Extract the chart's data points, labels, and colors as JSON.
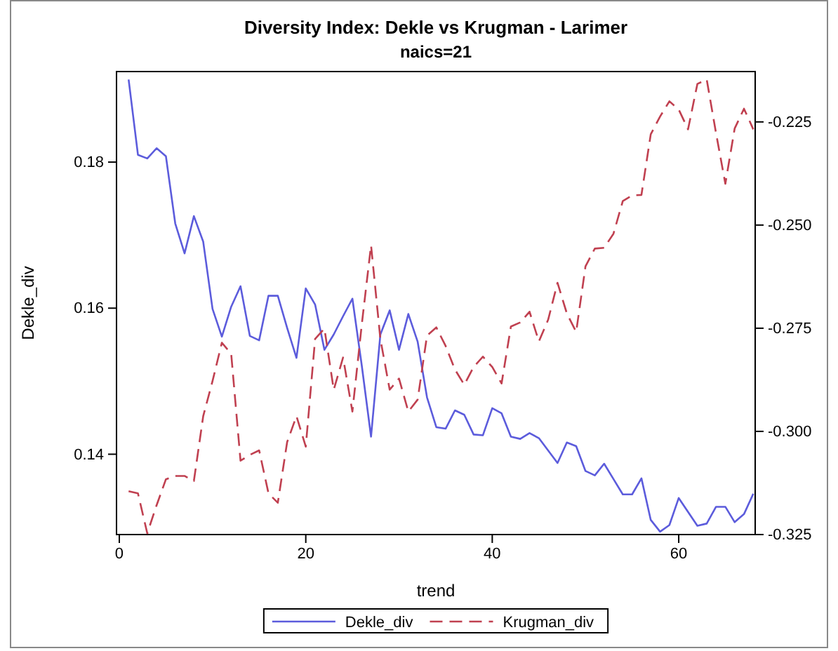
{
  "chart_data": {
    "type": "line",
    "title": "Diversity Index: Dekle vs Krugman - Larimer",
    "subtitle": "naics=21",
    "xlabel": "trend",
    "ylabel": "Dekle_div",
    "x": [
      1,
      2,
      3,
      4,
      5,
      6,
      7,
      8,
      9,
      10,
      11,
      12,
      13,
      14,
      15,
      16,
      17,
      18,
      19,
      20,
      21,
      22,
      23,
      24,
      25,
      26,
      27,
      28,
      29,
      30,
      31,
      32,
      33,
      34,
      35,
      36,
      37,
      38,
      39,
      40,
      41,
      42,
      43,
      44,
      45,
      46,
      47,
      48,
      49,
      50,
      51,
      52,
      53,
      54,
      55,
      56,
      57,
      58,
      59,
      60,
      61,
      62,
      63,
      64,
      65,
      66,
      67,
      68
    ],
    "xlim": [
      -0.3,
      68.2
    ],
    "xticks": [
      0,
      20,
      40,
      60
    ],
    "ylim": [
      0.129,
      0.1924
    ],
    "yticks": [
      {
        "value": 0.14,
        "label": "0.14"
      },
      {
        "value": 0.16,
        "label": "0.16"
      },
      {
        "value": 0.18,
        "label": "0.18"
      }
    ],
    "y2lim": [
      -0.325,
      -0.2128
    ],
    "y2ticks": [
      {
        "value": -0.325,
        "label": "-0.325"
      },
      {
        "value": -0.3,
        "label": "-0.300"
      },
      {
        "value": -0.275,
        "label": "-0.275"
      },
      {
        "value": -0.25,
        "label": "-0.250"
      },
      {
        "value": -0.225,
        "label": "-0.225"
      }
    ],
    "legend": "bottom",
    "grid": false,
    "series": [
      {
        "name": "Dekle_div",
        "color": "#5c5cdc",
        "line_style": "solid",
        "values": [
          0.1913,
          0.181,
          0.1805,
          0.1819,
          0.1808,
          0.1716,
          0.1675,
          0.1726,
          0.1691,
          0.1599,
          0.1561,
          0.1602,
          0.163,
          0.1562,
          0.1556,
          0.1617,
          0.1617,
          0.1573,
          0.1532,
          0.1627,
          0.1605,
          0.1543,
          0.1564,
          0.1589,
          0.1613,
          0.1522,
          0.1424,
          0.1564,
          0.1597,
          0.1543,
          0.1592,
          0.1554,
          0.1478,
          0.1437,
          0.1435,
          0.146,
          0.1454,
          0.1427,
          0.1426,
          0.1463,
          0.1456,
          0.1424,
          0.1421,
          0.1429,
          0.1422,
          0.1405,
          0.1388,
          0.1416,
          0.1411,
          0.1377,
          0.1371,
          0.1387,
          0.1366,
          0.1345,
          0.1345,
          0.1367,
          0.131,
          0.1294,
          0.1303,
          0.134,
          0.1321,
          0.1302,
          0.1305,
          0.1328,
          0.1328,
          0.1307,
          0.1318,
          0.1346
        ]
      },
      {
        "name": "Krugman_div",
        "color": "#c04050",
        "line_style": "dashed",
        "axis": "y2",
        "values": [
          -0.3145,
          -0.315,
          -0.3247,
          -0.3179,
          -0.3116,
          -0.3108,
          -0.3108,
          -0.312,
          -0.2963,
          -0.2878,
          -0.2785,
          -0.2812,
          -0.3071,
          -0.3057,
          -0.3046,
          -0.315,
          -0.3173,
          -0.3026,
          -0.2963,
          -0.3037,
          -0.2776,
          -0.2751,
          -0.2899,
          -0.2821,
          -0.2952,
          -0.2742,
          -0.2549,
          -0.2776,
          -0.2899,
          -0.2872,
          -0.2952,
          -0.2923,
          -0.2768,
          -0.2748,
          -0.2793,
          -0.285,
          -0.2887,
          -0.2844,
          -0.2819,
          -0.2844,
          -0.2884,
          -0.2746,
          -0.2736,
          -0.271,
          -0.2782,
          -0.2729,
          -0.264,
          -0.2714,
          -0.2759,
          -0.26,
          -0.2557,
          -0.2555,
          -0.2521,
          -0.2442,
          -0.2428,
          -0.2427,
          -0.228,
          -0.2237,
          -0.22,
          -0.222,
          -0.2268,
          -0.2158,
          -0.2147,
          -0.2277,
          -0.24,
          -0.2266,
          -0.2218,
          -0.2268
        ]
      }
    ]
  }
}
